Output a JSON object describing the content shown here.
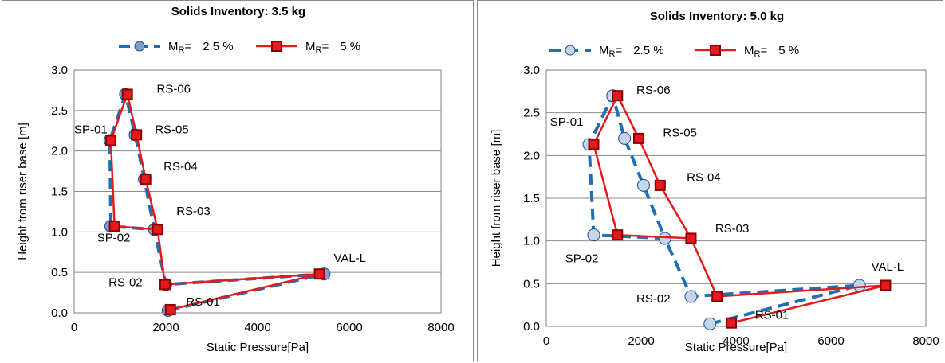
{
  "chart_data": [
    {
      "type": "line",
      "title": "Solids Inventory: 3.5 kg",
      "xlabel": "Static Pressure[Pa]",
      "ylabel": "Height from riser base [m]",
      "xlim": [
        0,
        8000
      ],
      "ylim": [
        0,
        3.0
      ],
      "xticks": [
        "0",
        "2000",
        "4000",
        "6000",
        "8000"
      ],
      "yticks": [
        "0.0",
        "0.5",
        "1.0",
        "1.5",
        "2.0",
        "2.5",
        "3.0"
      ],
      "grid": "horizontal",
      "legend_position": "top",
      "series": [
        {
          "name_prefix": "M",
          "name_sub": "R",
          "name_suffix": "=",
          "name_value": "2.5 %",
          "line_color": "#1f6fb5",
          "line_style": "dashed",
          "marker": "circle",
          "marker_fill": "#7f9fcf",
          "marker_stroke": "#1f4e79",
          "points": [
            {
              "x": 2050,
              "y": 0.03
            },
            {
              "x": 5450,
              "y": 0.48
            },
            {
              "x": 2000,
              "y": 0.35
            },
            {
              "x": 1750,
              "y": 1.03
            },
            {
              "x": 800,
              "y": 1.07
            },
            {
              "x": 780,
              "y": 2.13
            },
            {
              "x": 1120,
              "y": 2.7
            },
            {
              "x": 1330,
              "y": 2.2
            },
            {
              "x": 1530,
              "y": 1.65
            },
            {
              "x": 1750,
              "y": 1.03
            }
          ]
        },
        {
          "name_prefix": "M",
          "name_sub": "R",
          "name_suffix": "=",
          "name_value": "5 %",
          "line_color": "#e41a1c",
          "line_style": "solid",
          "marker": "square",
          "marker_fill": "#e41a1c",
          "marker_stroke": "#8b0000",
          "points": [
            {
              "x": 2100,
              "y": 0.04
            },
            {
              "x": 5350,
              "y": 0.48
            },
            {
              "x": 1980,
              "y": 0.35
            },
            {
              "x": 1820,
              "y": 1.03
            },
            {
              "x": 880,
              "y": 1.07
            },
            {
              "x": 800,
              "y": 2.13
            },
            {
              "x": 1160,
              "y": 2.7
            },
            {
              "x": 1360,
              "y": 2.2
            },
            {
              "x": 1560,
              "y": 1.65
            },
            {
              "x": 1820,
              "y": 1.03
            }
          ]
        }
      ],
      "annotations": [
        {
          "text": "RS-06",
          "x": 1800,
          "y": 2.72
        },
        {
          "text": "RS-05",
          "x": 1760,
          "y": 2.22
        },
        {
          "text": "SP-01",
          "x": 0,
          "y": 2.22
        },
        {
          "text": "RS-04",
          "x": 1950,
          "y": 1.76
        },
        {
          "text": "RS-03",
          "x": 2230,
          "y": 1.21
        },
        {
          "text": "SP-02",
          "x": 500,
          "y": 0.88
        },
        {
          "text": "VAL-L",
          "x": 5660,
          "y": 0.63
        },
        {
          "text": "RS-02",
          "x": 750,
          "y": 0.33
        },
        {
          "text": "RS-01",
          "x": 2440,
          "y": 0.09
        }
      ]
    },
    {
      "type": "line",
      "title": "Solids Inventory: 5.0 kg",
      "xlabel": "Static Pressure[Pa]",
      "ylabel": "Height from riser base [m]",
      "xlim": [
        0,
        8000
      ],
      "ylim": [
        0,
        3.0
      ],
      "xticks": [
        "0",
        "2000",
        "4000",
        "6000",
        "8000"
      ],
      "yticks": [
        "0.0",
        "0.5",
        "1.0",
        "1.5",
        "2.0",
        "2.5",
        "3.0"
      ],
      "grid": "horizontal",
      "legend_position": "top",
      "series": [
        {
          "name_prefix": "M",
          "name_sub": "R",
          "name_suffix": "=",
          "name_value": "2.5 %",
          "line_color": "#1f6fb5",
          "line_style": "dashed",
          "marker": "circle",
          "marker_fill": "#c5d4ef",
          "marker_stroke": "#1f4e79",
          "points": [
            {
              "x": 3450,
              "y": 0.03
            },
            {
              "x": 6600,
              "y": 0.48
            },
            {
              "x": 3050,
              "y": 0.35
            },
            {
              "x": 2500,
              "y": 1.03
            },
            {
              "x": 1000,
              "y": 1.07
            },
            {
              "x": 900,
              "y": 2.13
            },
            {
              "x": 1400,
              "y": 2.7
            },
            {
              "x": 1650,
              "y": 2.2
            },
            {
              "x": 2050,
              "y": 1.65
            },
            {
              "x": 2500,
              "y": 1.03
            }
          ]
        },
        {
          "name_prefix": "M",
          "name_sub": "R",
          "name_suffix": "=",
          "name_value": "5 %",
          "line_color": "#e41a1c",
          "line_style": "solid",
          "marker": "square",
          "marker_fill": "#e41a1c",
          "marker_stroke": "#8b0000",
          "points": [
            {
              "x": 3900,
              "y": 0.04
            },
            {
              "x": 7150,
              "y": 0.48
            },
            {
              "x": 3600,
              "y": 0.35
            },
            {
              "x": 3050,
              "y": 1.03
            },
            {
              "x": 1500,
              "y": 1.07
            },
            {
              "x": 1000,
              "y": 2.13
            },
            {
              "x": 1500,
              "y": 2.7
            },
            {
              "x": 1950,
              "y": 2.2
            },
            {
              "x": 2400,
              "y": 1.65
            },
            {
              "x": 3050,
              "y": 1.03
            }
          ]
        }
      ],
      "annotations": [
        {
          "text": "RS-06",
          "x": 1900,
          "y": 2.72
        },
        {
          "text": "RS-05",
          "x": 2460,
          "y": 2.22
        },
        {
          "text": "SP-01",
          "x": 80,
          "y": 2.35
        },
        {
          "text": "RS-04",
          "x": 2960,
          "y": 1.7
        },
        {
          "text": "RS-03",
          "x": 3560,
          "y": 1.1
        },
        {
          "text": "SP-02",
          "x": 400,
          "y": 0.75
        },
        {
          "text": "VAL-L",
          "x": 6850,
          "y": 0.65
        },
        {
          "text": "RS-02",
          "x": 1900,
          "y": 0.28
        },
        {
          "text": "RS-01",
          "x": 4400,
          "y": 0.09
        }
      ]
    }
  ]
}
